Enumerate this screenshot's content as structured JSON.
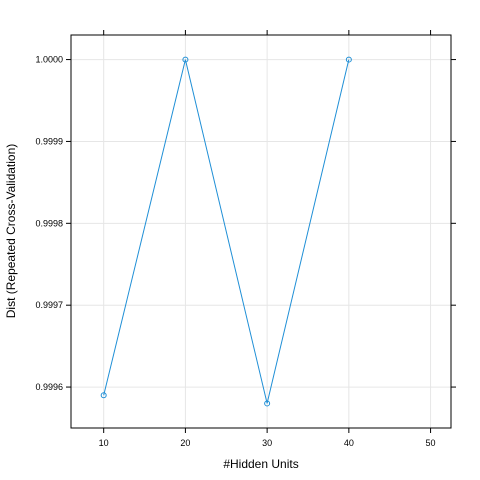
{
  "chart_data": {
    "type": "line",
    "title": "",
    "xlabel": "#Hidden Units",
    "ylabel": "Dist (Repeated Cross-Validation)",
    "x_ticks": [
      10,
      20,
      30,
      40,
      50
    ],
    "y_ticks": [
      0.9996,
      0.9997,
      0.9998,
      0.9999,
      1.0
    ],
    "y_tick_labels": [
      "0.9996",
      "0.9997",
      "0.9998",
      "0.9999",
      "1.0000"
    ],
    "xlim": [
      6,
      52.5
    ],
    "ylim": [
      0.99955,
      1.00003
    ],
    "grid": true,
    "series": [
      {
        "x": [
          10,
          20,
          30,
          40
        ],
        "values": [
          0.99959,
          1.0,
          0.99958,
          1.0
        ]
      }
    ],
    "colors": {
      "series": "#1f8fd6",
      "grid": "#e6e6e6",
      "frame": "#000000"
    }
  }
}
